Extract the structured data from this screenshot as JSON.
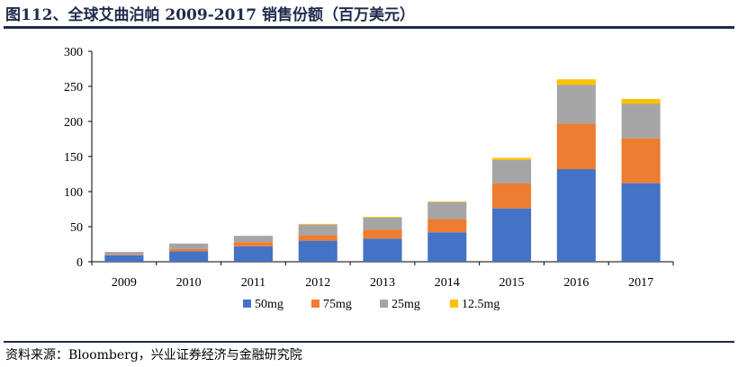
{
  "title": "图112、全球艾曲泊帕 2009-2017 销售份额（百万美元）",
  "source": "资料来源：Bloomberg，兴业证券经济与金融研究院",
  "chart_data": {
    "type": "bar",
    "stacked": true,
    "categories": [
      "2009",
      "2010",
      "2011",
      "2012",
      "2013",
      "2014",
      "2015",
      "2016",
      "2017"
    ],
    "series": [
      {
        "name": "50mg",
        "color": "#4472c4",
        "values": [
          9,
          15,
          22,
          30,
          33,
          42,
          76,
          132,
          112
        ]
      },
      {
        "name": "75mg",
        "color": "#ed7d31",
        "values": [
          1,
          3,
          6,
          8,
          13,
          19,
          36,
          65,
          64
        ]
      },
      {
        "name": "25mg",
        "color": "#a5a5a5",
        "values": [
          4,
          8,
          9,
          15,
          17,
          24,
          33,
          55,
          49
        ]
      },
      {
        "name": "12.5mg",
        "color": "#ffc000",
        "values": [
          0,
          0,
          0,
          1,
          1,
          1,
          3,
          8,
          7
        ]
      }
    ],
    "yticks": [
      "0",
      "50",
      "100",
      "150",
      "200",
      "250",
      "300"
    ],
    "ylim": [
      0,
      300
    ],
    "grid": false,
    "legend": "bottom-center"
  }
}
